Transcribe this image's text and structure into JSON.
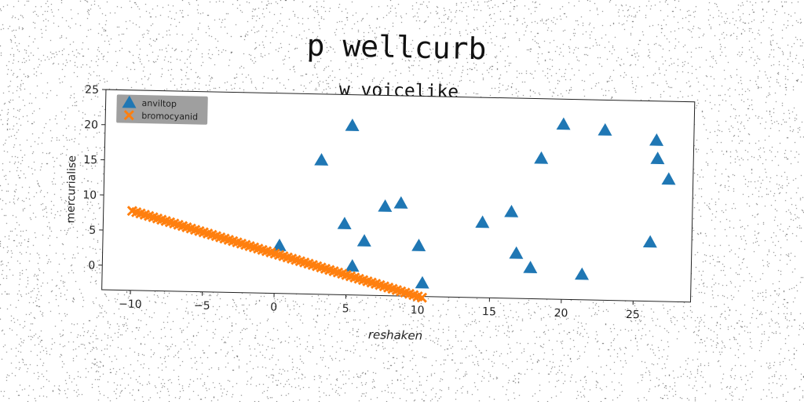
{
  "suptitle": "p wellcurb",
  "chart_data": {
    "type": "scatter",
    "title": "w voicelike",
    "xlabel": "reshaken",
    "ylabel": "mercurialise",
    "xlim": [
      -12,
      29
    ],
    "ylim": [
      -3.5,
      25
    ],
    "xticks": [
      -10,
      -5,
      0,
      5,
      10,
      15,
      20,
      25
    ],
    "yticks": [
      0,
      5,
      10,
      15,
      20,
      25
    ],
    "xtick_labels": [
      "−10",
      "−5",
      "0",
      "5",
      "10",
      "15",
      "20",
      "25"
    ],
    "ytick_labels": [
      "0",
      "5",
      "10",
      "15",
      "20",
      "25"
    ],
    "grid": false,
    "legend_position": "top-left",
    "series": [
      {
        "name": "anviltop",
        "marker": "triangle",
        "color": "#1f77b4",
        "points": [
          [
            0.3,
            3.3
          ],
          [
            3.1,
            15.6
          ],
          [
            4.8,
            6.6
          ],
          [
            5.2,
            20.6
          ],
          [
            5.4,
            0.6
          ],
          [
            6.2,
            4.2
          ],
          [
            7.6,
            9.2
          ],
          [
            8.7,
            9.7
          ],
          [
            10.0,
            3.7
          ],
          [
            10.3,
            -1.6
          ],
          [
            14.4,
            7.2
          ],
          [
            16.4,
            8.8
          ],
          [
            16.8,
            2.9
          ],
          [
            17.8,
            0.9
          ],
          [
            18.4,
            16.5
          ],
          [
            19.9,
            21.4
          ],
          [
            21.4,
            0.1
          ],
          [
            22.8,
            20.7
          ],
          [
            26.1,
            4.9
          ],
          [
            26.4,
            19.4
          ],
          [
            26.5,
            16.8
          ],
          [
            27.3,
            13.9
          ]
        ]
      },
      {
        "name": "bromocyanid",
        "marker": "x",
        "color": "#ff7f0e",
        "line": {
          "x_start": -10,
          "x_end": 10.3,
          "slope": -0.565,
          "intercept": 2.15,
          "count": 70
        }
      }
    ]
  }
}
